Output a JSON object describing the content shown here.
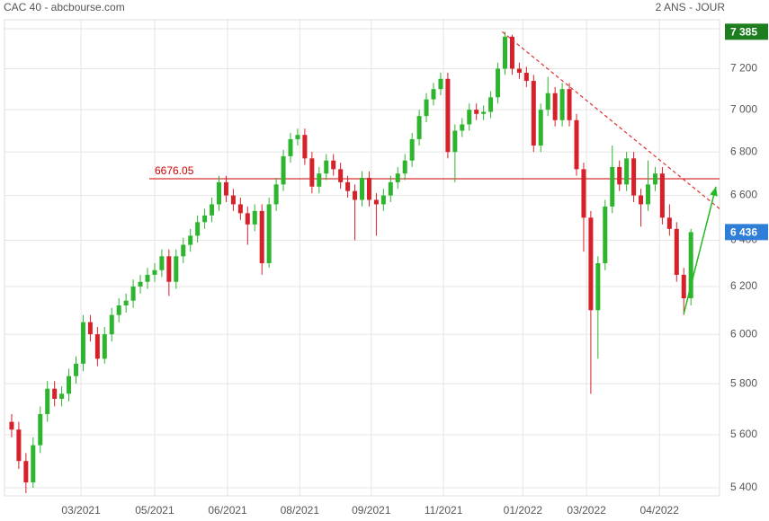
{
  "chart_data": {
    "type": "candlestick",
    "title": "CAC 40 - abcbourse.com",
    "subtitle": "2 ANS - JOUR",
    "up_color": "#2db52d",
    "down_color": "#d6202a",
    "log_scale": true,
    "grid": true,
    "xlim": [
      -1,
      99
    ],
    "xticks": [
      {
        "value": 9.7,
        "label": "03/2021"
      },
      {
        "value": 20,
        "label": "05/2021"
      },
      {
        "value": 30.2,
        "label": "06/2021"
      },
      {
        "value": 40.3,
        "label": "08/2021"
      },
      {
        "value": 50.3,
        "label": "09/2021"
      },
      {
        "value": 60.4,
        "label": "11/2021"
      },
      {
        "value": 71.5,
        "label": "01/2022"
      },
      {
        "value": 80.4,
        "label": "03/2022"
      },
      {
        "value": 90.6,
        "label": "04/2022"
      }
    ],
    "ylim": [
      5370,
      7446
    ],
    "yticks": [
      {
        "value": 5400,
        "label": "5 400"
      },
      {
        "value": 5600,
        "label": "5 600"
      },
      {
        "value": 5800,
        "label": "5 800"
      },
      {
        "value": 6000,
        "label": "6 000"
      },
      {
        "value": 6200,
        "label": "6 200"
      },
      {
        "value": 6400,
        "label": "6 400"
      },
      {
        "value": 6600,
        "label": "6 600"
      },
      {
        "value": 6800,
        "label": "6 800"
      },
      {
        "value": 7000,
        "label": "7 000"
      },
      {
        "value": 7200,
        "label": "7 200"
      },
      {
        "value": 7400,
        "label": "7 400"
      }
    ],
    "candles": [
      [
        5650,
        5680,
        5590,
        5620
      ],
      [
        5620,
        5650,
        5470,
        5500
      ],
      [
        5500,
        5530,
        5380,
        5420
      ],
      [
        5420,
        5590,
        5400,
        5560
      ],
      [
        5560,
        5710,
        5530,
        5680
      ],
      [
        5680,
        5810,
        5650,
        5780
      ],
      [
        5780,
        5810,
        5710,
        5740
      ],
      [
        5740,
        5790,
        5710,
        5760
      ],
      [
        5760,
        5860,
        5730,
        5830
      ],
      [
        5830,
        5910,
        5800,
        5880
      ],
      [
        5880,
        6080,
        5850,
        6050
      ],
      [
        6050,
        6080,
        5970,
        6000
      ],
      [
        6000,
        6030,
        5870,
        5900
      ],
      [
        5900,
        6030,
        5880,
        6000
      ],
      [
        6000,
        6110,
        5970,
        6080
      ],
      [
        6080,
        6150,
        6050,
        6120
      ],
      [
        6120,
        6170,
        6090,
        6140
      ],
      [
        6140,
        6230,
        6110,
        6200
      ],
      [
        6200,
        6250,
        6170,
        6220
      ],
      [
        6220,
        6280,
        6190,
        6250
      ],
      [
        6250,
        6300,
        6220,
        6270
      ],
      [
        6270,
        6360,
        6240,
        6330
      ],
      [
        6330,
        6360,
        6160,
        6220
      ],
      [
        6220,
        6360,
        6190,
        6330
      ],
      [
        6330,
        6410,
        6300,
        6380
      ],
      [
        6380,
        6450,
        6350,
        6420
      ],
      [
        6420,
        6510,
        6390,
        6480
      ],
      [
        6480,
        6540,
        6450,
        6510
      ],
      [
        6510,
        6590,
        6480,
        6560
      ],
      [
        6560,
        6690,
        6530,
        6660
      ],
      [
        6660,
        6690,
        6570,
        6600
      ],
      [
        6600,
        6630,
        6530,
        6560
      ],
      [
        6560,
        6590,
        6490,
        6520
      ],
      [
        6520,
        6550,
        6380,
        6470
      ],
      [
        6470,
        6560,
        6440,
        6530
      ],
      [
        6530,
        6560,
        6250,
        6300
      ],
      [
        6300,
        6590,
        6280,
        6560
      ],
      [
        6560,
        6680,
        6530,
        6650
      ],
      [
        6650,
        6810,
        6620,
        6780
      ],
      [
        6780,
        6890,
        6750,
        6860
      ],
      [
        6860,
        6910,
        6830,
        6880
      ],
      [
        6880,
        6910,
        6740,
        6770
      ],
      [
        6770,
        6800,
        6610,
        6640
      ],
      [
        6640,
        6730,
        6610,
        6700
      ],
      [
        6700,
        6790,
        6670,
        6760
      ],
      [
        6760,
        6790,
        6690,
        6720
      ],
      [
        6720,
        6750,
        6630,
        6660
      ],
      [
        6660,
        6690,
        6590,
        6620
      ],
      [
        6620,
        6650,
        6400,
        6580
      ],
      [
        6580,
        6710,
        6550,
        6680
      ],
      [
        6680,
        6710,
        6550,
        6580
      ],
      [
        6580,
        6610,
        6420,
        6560
      ],
      [
        6560,
        6630,
        6530,
        6600
      ],
      [
        6600,
        6690,
        6570,
        6660
      ],
      [
        6660,
        6730,
        6630,
        6700
      ],
      [
        6700,
        6790,
        6670,
        6760
      ],
      [
        6760,
        6890,
        6730,
        6860
      ],
      [
        6860,
        7000,
        6830,
        6970
      ],
      [
        6970,
        7080,
        6940,
        7050
      ],
      [
        7050,
        7130,
        7020,
        7100
      ],
      [
        7100,
        7180,
        7070,
        7150
      ],
      [
        7150,
        7180,
        6770,
        6800
      ],
      [
        6800,
        6930,
        6660,
        6900
      ],
      [
        6900,
        6960,
        6870,
        6930
      ],
      [
        6930,
        7030,
        6900,
        7000
      ],
      [
        7000,
        7030,
        6950,
        6980
      ],
      [
        6980,
        7020,
        6950,
        6990
      ],
      [
        6990,
        7090,
        6960,
        7060
      ],
      [
        7060,
        7230,
        7030,
        7200
      ],
      [
        7200,
        7385,
        7170,
        7360
      ],
      [
        7360,
        7370,
        7170,
        7200
      ],
      [
        7200,
        7230,
        7150,
        7180
      ],
      [
        7180,
        7210,
        7110,
        7140
      ],
      [
        7140,
        7170,
        6800,
        6830
      ],
      [
        6830,
        7030,
        6800,
        7000
      ],
      [
        7000,
        7160,
        6970,
        7080
      ],
      [
        7080,
        7110,
        6920,
        6950
      ],
      [
        6950,
        7130,
        6920,
        7100
      ],
      [
        7100,
        7130,
        6920,
        6950
      ],
      [
        6950,
        6980,
        6690,
        6720
      ],
      [
        6720,
        6750,
        6350,
        6500
      ],
      [
        6500,
        6530,
        5760,
        6100
      ],
      [
        6100,
        6330,
        5900,
        6300
      ],
      [
        6300,
        6580,
        6270,
        6550
      ],
      [
        6550,
        6830,
        6520,
        6730
      ],
      [
        6730,
        6760,
        6620,
        6650
      ],
      [
        6650,
        6800,
        6620,
        6770
      ],
      [
        6770,
        6800,
        6570,
        6600
      ],
      [
        6600,
        6630,
        6460,
        6560
      ],
      [
        6560,
        6760,
        6530,
        6650
      ],
      [
        6650,
        6730,
        6620,
        6700
      ],
      [
        6700,
        6730,
        6470,
        6500
      ],
      [
        6500,
        6560,
        6420,
        6450
      ],
      [
        6450,
        6480,
        6220,
        6250
      ],
      [
        6250,
        6280,
        6080,
        6150
      ],
      [
        6150,
        6450,
        6120,
        6436
      ]
    ],
    "hline": {
      "value": 6676.05,
      "from": 19.25,
      "color": "#cc0000"
    },
    "trendline": {
      "x": [
        68.6,
        99
      ],
      "y": [
        7385,
        6540
      ],
      "color": "#e03030"
    },
    "arrow": {
      "x": [
        94,
        98.5
      ],
      "y": [
        6085,
        6640
      ],
      "color": "#22bb22"
    },
    "high_tag": {
      "value": 7385,
      "label": "7 385",
      "color": "#1e7d1e"
    },
    "last_tag": {
      "value": 6436,
      "label": "6 436",
      "color": "#2f7fd8"
    }
  }
}
